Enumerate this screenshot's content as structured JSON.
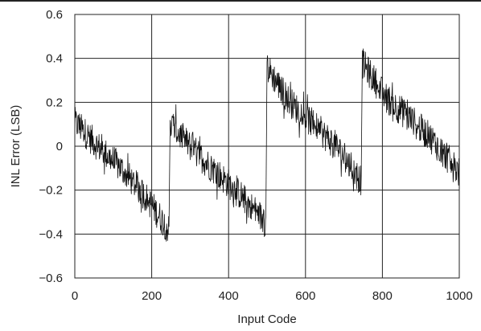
{
  "chart_data": {
    "type": "line",
    "title": "",
    "xlabel": "Input Code",
    "ylabel": "INL Error (LSB)",
    "xlim": [
      0,
      1000
    ],
    "ylim": [
      -0.6,
      0.6
    ],
    "xticks": [
      0,
      200,
      400,
      600,
      800,
      1000
    ],
    "yticks": [
      0.6,
      0.4,
      0.2,
      0,
      -0.2,
      -0.4,
      -0.6
    ],
    "ytick_labels": [
      "0.6",
      "0.4",
      "0.2",
      "0",
      "−0.2",
      "−0.4",
      "−0.6"
    ],
    "grid": true,
    "noise_amplitude": 0.07,
    "series": [
      {
        "segments": [
          {
            "x": [
              0,
              60,
              120,
              180,
              245
            ],
            "y": [
              0.11,
              0.0,
              -0.1,
              -0.22,
              -0.38
            ]
          },
          {
            "x": [
              248,
              310,
              370,
              430,
              497
            ],
            "y": [
              0.1,
              -0.02,
              -0.12,
              -0.22,
              -0.35
            ]
          },
          {
            "x": [
              500,
              560,
              620,
              680,
              745
            ],
            "y": [
              0.36,
              0.2,
              0.1,
              0.0,
              -0.16
            ]
          },
          {
            "x": [
              748,
              810,
              870,
              930,
              1000
            ],
            "y": [
              0.38,
              0.22,
              0.13,
              0.03,
              -0.12
            ]
          }
        ]
      }
    ]
  }
}
